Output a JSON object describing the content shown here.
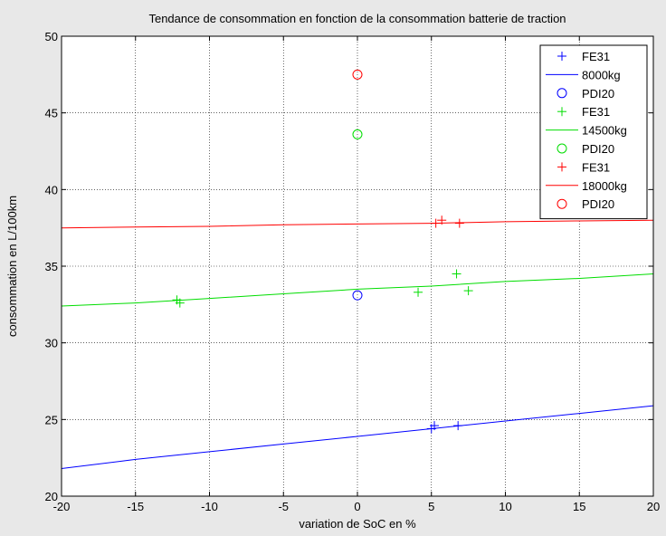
{
  "chart_data": {
    "type": "scatter",
    "title": "Tendance de consommation en fonction de la consommation batterie de traction",
    "xlabel": "variation de SoC en %",
    "ylabel": "consommation en L/100km",
    "xlim": [
      -20,
      20
    ],
    "ylim": [
      20,
      50
    ],
    "xticks": [
      -20,
      -15,
      -10,
      -5,
      0,
      5,
      10,
      15,
      20
    ],
    "yticks": [
      20,
      25,
      30,
      35,
      40,
      45,
      50
    ],
    "grid": true,
    "legend_position": "top-right",
    "series": [
      {
        "name": "FE31",
        "kind": "points",
        "marker": "plus",
        "color": "#0000ff",
        "points": [
          [
            5.0,
            24.4
          ],
          [
            5.2,
            24.6
          ],
          [
            6.8,
            24.6
          ]
        ]
      },
      {
        "name": "8000kg",
        "kind": "line",
        "color": "#0000ff",
        "points": [
          [
            -20,
            21.8
          ],
          [
            -15,
            22.4
          ],
          [
            -10,
            22.9
          ],
          [
            -5,
            23.4
          ],
          [
            0,
            23.9
          ],
          [
            5,
            24.4
          ],
          [
            10,
            24.9
          ],
          [
            15,
            25.4
          ],
          [
            20,
            25.9
          ]
        ]
      },
      {
        "name": "PDI20",
        "kind": "points",
        "marker": "circle",
        "color": "#0000ff",
        "points": [
          [
            0,
            33.1
          ]
        ]
      },
      {
        "name": "FE31",
        "kind": "points",
        "marker": "plus",
        "color": "#00dd00",
        "points": [
          [
            -12.2,
            32.8
          ],
          [
            -12.0,
            32.6
          ],
          [
            4.1,
            33.3
          ],
          [
            6.7,
            34.5
          ],
          [
            7.5,
            33.4
          ]
        ]
      },
      {
        "name": "14500kg",
        "kind": "line",
        "color": "#00dd00",
        "points": [
          [
            -20,
            32.4
          ],
          [
            -15,
            32.6
          ],
          [
            -10,
            32.9
          ],
          [
            -5,
            33.2
          ],
          [
            0,
            33.5
          ],
          [
            5,
            33.7
          ],
          [
            10,
            34.0
          ],
          [
            15,
            34.2
          ],
          [
            20,
            34.5
          ]
        ]
      },
      {
        "name": "PDI20",
        "kind": "points",
        "marker": "circle",
        "color": "#00dd00",
        "points": [
          [
            0,
            43.6
          ]
        ]
      },
      {
        "name": "FE31",
        "kind": "points",
        "marker": "plus",
        "color": "#ff0000",
        "points": [
          [
            5.3,
            37.8
          ],
          [
            5.7,
            38.0
          ],
          [
            6.9,
            37.8
          ]
        ]
      },
      {
        "name": "18000kg",
        "kind": "line",
        "color": "#ff0000",
        "points": [
          [
            -20,
            37.5
          ],
          [
            -15,
            37.55
          ],
          [
            -10,
            37.6
          ],
          [
            -5,
            37.7
          ],
          [
            0,
            37.75
          ],
          [
            5,
            37.8
          ],
          [
            10,
            37.9
          ],
          [
            15,
            37.95
          ],
          [
            20,
            38.0
          ]
        ]
      },
      {
        "name": "PDI20",
        "kind": "points",
        "marker": "circle",
        "color": "#ff0000",
        "points": [
          [
            0,
            47.5
          ]
        ]
      }
    ]
  }
}
